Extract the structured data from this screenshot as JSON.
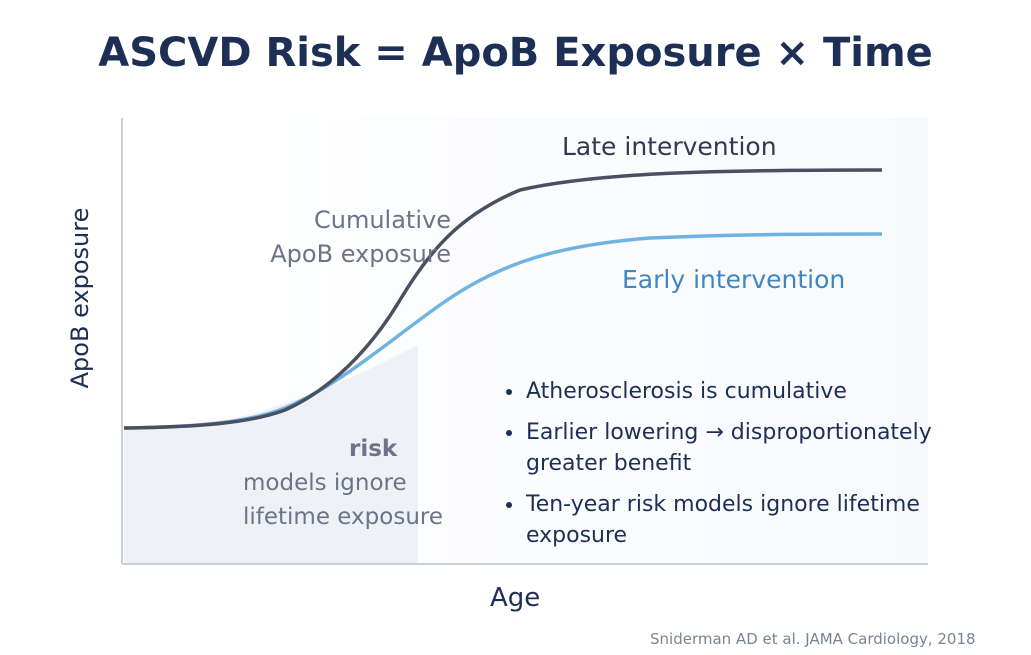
{
  "title": "ASCVD Risk = ApoB Exposure × Time",
  "axes": {
    "y_label": "ApoB exposure",
    "x_label": "Age"
  },
  "curves": {
    "late": {
      "label": "Late intervention",
      "color": "#4a5060"
    },
    "early": {
      "label": "Early intervention",
      "color": "#6fb3e0"
    }
  },
  "annotations": {
    "cumulative_line1": "Cumulative",
    "cumulative_line2": "ApoB exposure",
    "risk_line1": "risk",
    "risk_line2": "models ignore",
    "risk_line3": "lifetime exposure"
  },
  "bullets": [
    "Atherosclerosis is cumulative",
    "Earlier lowering → disproportionately  greater benefit",
    "Ten-year risk models ignore lifetime exposure"
  ],
  "citation": "Sniderman AD et al. JAMA Cardiology, 2018",
  "colors": {
    "title": "#1e2f55",
    "shaded_area": "#eef1f6"
  }
}
